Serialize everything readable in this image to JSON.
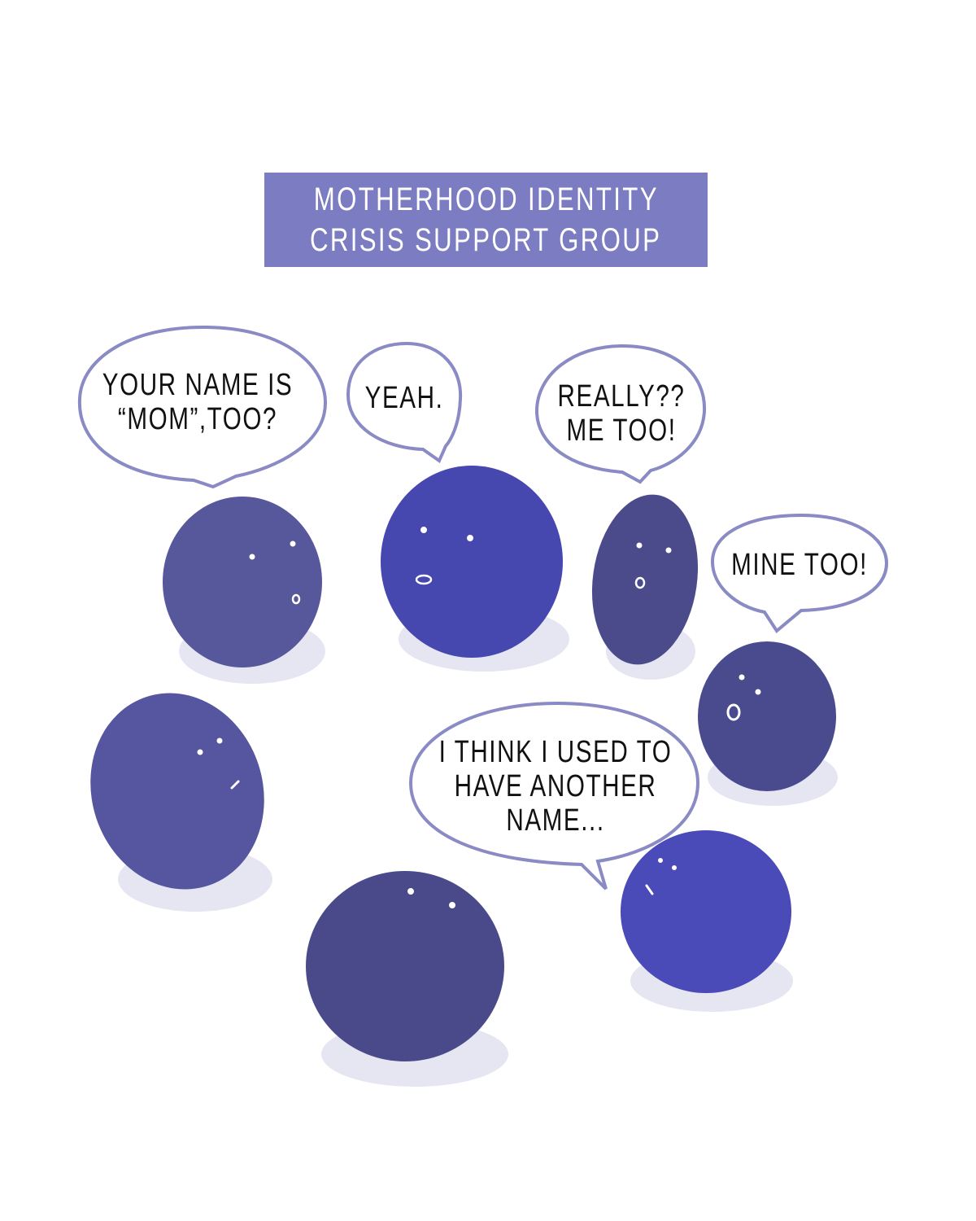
{
  "banner": {
    "line1": "MOTHERHOOD IDENTITY",
    "line2": "CRISIS SUPPORT GROUP",
    "color": "#7c7cc2"
  },
  "bubbles": [
    {
      "text": "YOUR NAME IS\n“MOM”,TOO?"
    },
    {
      "text": "YEAH."
    },
    {
      "text": "REALLY??\nME TOO!"
    },
    {
      "text": "MINE TOO!"
    },
    {
      "text": "I THINK I USED TO\nHAVE ANOTHER\nNAME..."
    }
  ],
  "colors": {
    "bubble_outline": "#8a8ac4",
    "blob_dark": "#4b4b8e",
    "blob_bright": "#4a4ab4",
    "shadow": "#e4e4f0"
  }
}
